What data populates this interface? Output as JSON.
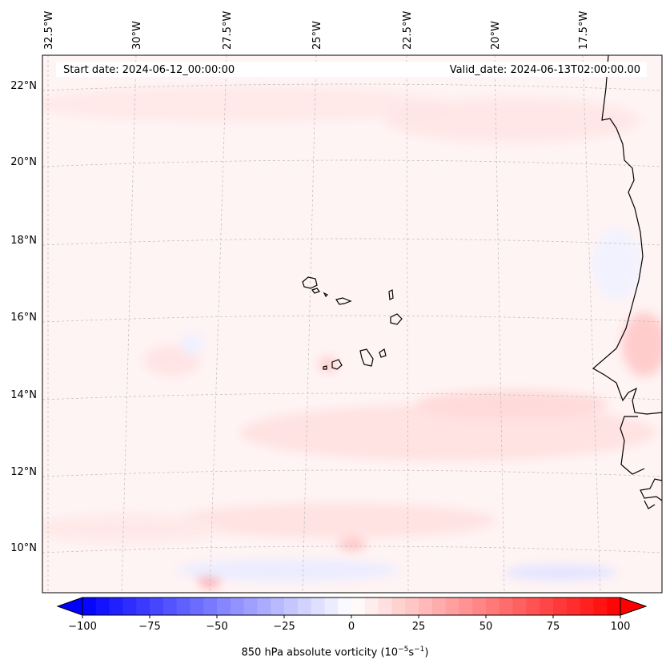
{
  "map": {
    "start_label": "Start date: 2024-06-12_00:00:00",
    "valid_label": "Valid_date: 2024-06-13T02:00:00.00",
    "lon_labels": [
      "32.5°W",
      "30°W",
      "27.5°W",
      "25°W",
      "22.5°W",
      "20°W",
      "17.5°W"
    ],
    "lat_labels": [
      "22°N",
      "20°N",
      "18°N",
      "16°N",
      "14°N",
      "12°N",
      "10°N"
    ],
    "gridlines": true,
    "coastline_color": "#000000"
  },
  "colorbar": {
    "ticks": [
      "−100",
      "−75",
      "−50",
      "−25",
      "0",
      "25",
      "50",
      "75",
      "100"
    ],
    "range": [
      -100,
      100
    ],
    "negative_color": "#0000ff",
    "positive_color": "#ff0000",
    "neutral_color": "#ffffff",
    "title_main": "850 hPa absolute vorticity (10",
    "title_exp1": "−5",
    "title_mid": "s",
    "title_exp2": "−1",
    "title_end": ")"
  }
}
